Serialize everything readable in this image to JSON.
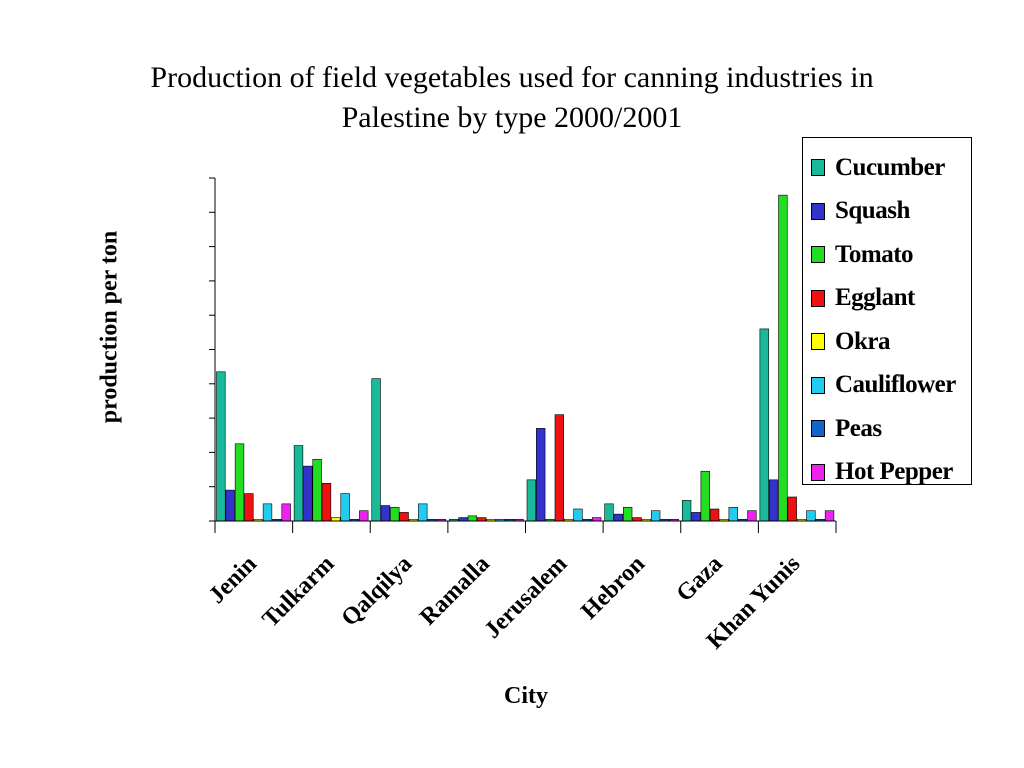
{
  "slide": {
    "title_line1": "Production of field vegetables used for canning industries in",
    "title_line2": "Palestine by type 2000/2001"
  },
  "chart_data": {
    "type": "bar",
    "title": "Production of field vegetables used for canning industries in Palestine by type 2000/2001",
    "xlabel": "City",
    "ylabel": "production per ton",
    "categories": [
      "Jenin",
      "Tulkarm",
      "Qalqilya",
      "Ramalla",
      "Jerusalem",
      "Hebron",
      "Gaza",
      "Khan Yunis"
    ],
    "y_tick_labels_shown": false,
    "ylim": [
      0,
      10
    ],
    "grid": false,
    "legend_position": "top-right",
    "series": [
      {
        "name": "Cucumber",
        "color": "#1ab99a",
        "values": [
          4.35,
          2.2,
          4.15,
          0.05,
          1.2,
          0.5,
          0.6,
          5.6
        ]
      },
      {
        "name": "Squash",
        "color": "#3333cc",
        "values": [
          0.9,
          1.6,
          0.45,
          0.1,
          2.7,
          0.2,
          0.25,
          1.2
        ]
      },
      {
        "name": "Tomato",
        "color": "#22dd22",
        "values": [
          2.25,
          1.8,
          0.4,
          0.15,
          0.05,
          0.4,
          1.45,
          9.5
        ]
      },
      {
        "name": "Egglant",
        "color": "#ee1111",
        "values": [
          0.8,
          1.1,
          0.25,
          0.1,
          3.1,
          0.1,
          0.35,
          0.7
        ]
      },
      {
        "name": "Okra",
        "color": "#ffff00",
        "values": [
          0.05,
          0.1,
          0.05,
          0.05,
          0.05,
          0.05,
          0.05,
          0.05
        ]
      },
      {
        "name": "Cauliflower",
        "color": "#22ccee",
        "values": [
          0.5,
          0.8,
          0.5,
          0.05,
          0.35,
          0.3,
          0.4,
          0.3
        ]
      },
      {
        "name": "Peas",
        "color": "#1166cc",
        "values": [
          0.05,
          0.05,
          0.05,
          0.05,
          0.05,
          0.05,
          0.05,
          0.05
        ]
      },
      {
        "name": "Hot Pepper",
        "color": "#ee22ee",
        "values": [
          0.5,
          0.3,
          0.05,
          0.05,
          0.1,
          0.05,
          0.3,
          0.3
        ]
      }
    ]
  }
}
